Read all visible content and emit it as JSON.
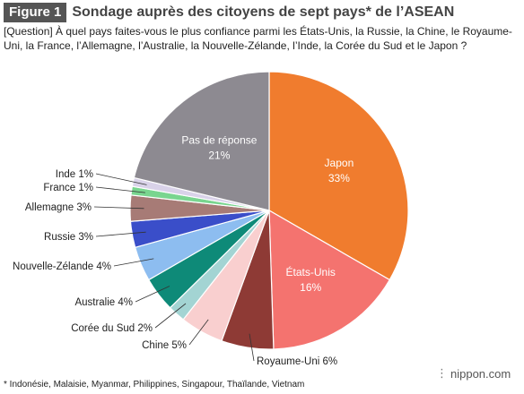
{
  "header": {
    "badge": "Figure 1",
    "title": "Sondage auprès des citoyens de sept pays* de l’ASEAN"
  },
  "question": "[Question] À quel pays faites-vous le plus confiance parmi les États-Unis, la Russie, la Chine, le Royaume-Uni, la France, l’Allemagne, l’Australie, la Nouvelle-Zélande, l’Inde, la Corée du Sud et le Japon ?",
  "footnote": "* Indonésie, Malaisie, Myanmar, Philippines, Singapour, Thaïlande, Vietnam",
  "brand": {
    "text": "nippon.com",
    "icon": "nippon-logo-icon"
  },
  "chart_data": {
    "type": "pie",
    "start_angle_deg": 0,
    "direction": "clockwise",
    "slices": [
      {
        "label": "Japon",
        "value": 33,
        "display": "33%",
        "color": "#f07c2e",
        "label_position": "inside"
      },
      {
        "label": "États-Unis",
        "value": 16,
        "display": "16%",
        "color": "#f4736f",
        "label_position": "inside"
      },
      {
        "label": "Royaume-Uni",
        "value": 6,
        "display": "6%",
        "color": "#8e3a35",
        "label_position": "outside"
      },
      {
        "label": "Chine",
        "value": 5,
        "display": "5%",
        "color": "#f9cfcf",
        "label_position": "outside"
      },
      {
        "label": "Corée du Sud",
        "value": 2,
        "display": "2%",
        "color": "#a3d4d3",
        "label_position": "outside"
      },
      {
        "label": "Australie",
        "value": 4,
        "display": "4%",
        "color": "#0e8a78",
        "label_position": "outside"
      },
      {
        "label": "Nouvelle-Zélande",
        "value": 4,
        "display": "4%",
        "color": "#8dbdf0",
        "label_position": "outside"
      },
      {
        "label": "Russie",
        "value": 3,
        "display": "3%",
        "color": "#3a4ec9",
        "label_position": "outside"
      },
      {
        "label": "Allemagne",
        "value": 3,
        "display": "3%",
        "color": "#a77b76",
        "label_position": "outside"
      },
      {
        "label": "France",
        "value": 1,
        "display": "1%",
        "color": "#79d58f",
        "label_position": "outside"
      },
      {
        "label": "Inde",
        "value": 1,
        "display": "1%",
        "color": "#d9d2e9",
        "label_position": "outside"
      },
      {
        "label": "Pas de réponse",
        "value": 21,
        "display": "21%",
        "color": "#8d8a91",
        "label_position": "inside"
      }
    ]
  }
}
